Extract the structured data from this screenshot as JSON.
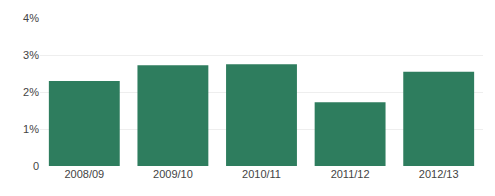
{
  "chart_data": {
    "type": "bar",
    "categories": [
      "2008/09",
      "2009/10",
      "2010/11",
      "2011/12",
      "2012/13"
    ],
    "values": [
      2.3,
      2.72,
      2.75,
      1.72,
      2.55
    ],
    "color": "#2E7D5E",
    "ylim": [
      0,
      4
    ],
    "yticks": [
      0,
      {
        "value": 1,
        "label": "1%"
      },
      {
        "value": 2,
        "label": "2%"
      },
      {
        "value": 3,
        "label": "3%"
      },
      {
        "value": 4,
        "label": "4%"
      }
    ],
    "grid": true
  }
}
